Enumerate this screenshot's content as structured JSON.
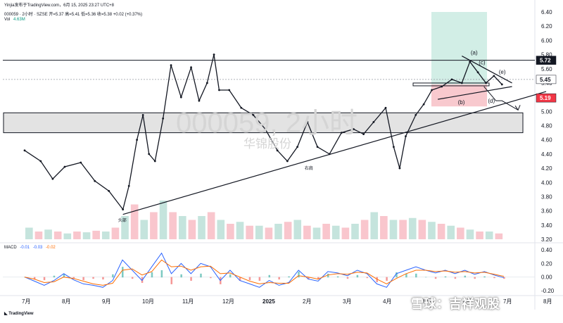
{
  "header": {
    "attribution": "Yinjia发布于TradingView.com，6月 15, 2025 23:27 UTC+8",
    "quote": "000059 · 2小时 · SZSE  开=5.37  高=5.41  低=5.36  收=5.38  +0.02 (+0.37%)",
    "volume_label": "Vol",
    "volume_value": "4.63M"
  },
  "watermark": {
    "symbol": "000059, 2小时",
    "name": "华锦股份"
  },
  "annotations": {
    "a": "(a)",
    "b": "(b)",
    "c": "(c)",
    "d": "(d)",
    "e": "(e)",
    "head": "头部",
    "right_shoulder": "右肩"
  },
  "price_tags": {
    "resistance": "5.72",
    "last": "5.45",
    "stop": "5.19"
  },
  "macd": {
    "label": "MACD",
    "v1": "-0.01",
    "v2": "-0.03",
    "v3": "-0.02"
  },
  "footer": {
    "brand": "TradingView",
    "credit": "雪球：吉祥观股"
  },
  "colors": {
    "up": "#131722",
    "down": "#131722",
    "target_zone": "#d2eee6",
    "stop_zone": "#f8c9ce",
    "support_band": "#e3e3e3",
    "macd_line": "#2962ff",
    "signal_line": "#ff6d00",
    "tag_dark": "#131722",
    "tag_red": "#f23645"
  },
  "chart_data": {
    "type": "line",
    "title": "000059 · 2小时 · SZSE",
    "ylim": [
      3.2,
      6.4
    ],
    "y_ticks": [
      "6.40",
      "6.20",
      "6.00",
      "5.80",
      "5.60",
      "5.40",
      "5.20",
      "5.00",
      "4.80",
      "4.60",
      "4.40",
      "4.20",
      "4.00",
      "3.80",
      "3.60",
      "3.40",
      "3.20"
    ],
    "x_ticks": [
      "7月",
      "8月",
      "9月",
      "10月",
      "11月",
      "12月",
      "2025",
      "2月",
      "3月",
      "4月",
      "5月",
      "6月",
      "7月",
      "8月"
    ],
    "x_tick_months": [
      0,
      1,
      2,
      3,
      4,
      5,
      6,
      7,
      8,
      9,
      10,
      11,
      12,
      13
    ],
    "price_path": [
      {
        "m": 0.0,
        "p": 4.45
      },
      {
        "m": 0.4,
        "p": 4.3
      },
      {
        "m": 0.7,
        "p": 4.05
      },
      {
        "m": 1.0,
        "p": 4.22
      },
      {
        "m": 1.4,
        "p": 4.28
      },
      {
        "m": 1.75,
        "p": 4.02
      },
      {
        "m": 2.1,
        "p": 3.88
      },
      {
        "m": 2.45,
        "p": 3.62
      },
      {
        "m": 2.6,
        "p": 3.95
      },
      {
        "m": 2.8,
        "p": 4.6
      },
      {
        "m": 2.95,
        "p": 4.95
      },
      {
        "m": 3.1,
        "p": 4.4
      },
      {
        "m": 3.25,
        "p": 4.3
      },
      {
        "m": 3.45,
        "p": 4.9
      },
      {
        "m": 3.65,
        "p": 5.65
      },
      {
        "m": 3.9,
        "p": 5.2
      },
      {
        "m": 4.15,
        "p": 5.62
      },
      {
        "m": 4.35,
        "p": 5.15
      },
      {
        "m": 4.55,
        "p": 5.4
      },
      {
        "m": 4.72,
        "p": 5.8
      },
      {
        "m": 4.85,
        "p": 5.3
      },
      {
        "m": 5.1,
        "p": 5.3
      },
      {
        "m": 5.4,
        "p": 5.05
      },
      {
        "m": 5.7,
        "p": 4.95
      },
      {
        "m": 6.0,
        "p": 4.75
      },
      {
        "m": 6.3,
        "p": 4.45
      },
      {
        "m": 6.55,
        "p": 4.3
      },
      {
        "m": 6.8,
        "p": 4.5
      },
      {
        "m": 7.05,
        "p": 4.85
      },
      {
        "m": 7.3,
        "p": 4.5
      },
      {
        "m": 7.6,
        "p": 4.4
      },
      {
        "m": 7.9,
        "p": 4.7
      },
      {
        "m": 8.2,
        "p": 4.75
      },
      {
        "m": 8.45,
        "p": 4.68
      },
      {
        "m": 8.7,
        "p": 4.85
      },
      {
        "m": 9.0,
        "p": 5.05
      },
      {
        "m": 9.2,
        "p": 4.5
      },
      {
        "m": 9.35,
        "p": 4.2
      },
      {
        "m": 9.5,
        "p": 4.65
      },
      {
        "m": 9.75,
        "p": 4.95
      },
      {
        "m": 9.95,
        "p": 5.1
      },
      {
        "m": 10.15,
        "p": 5.3
      },
      {
        "m": 10.4,
        "p": 5.35
      },
      {
        "m": 10.65,
        "p": 5.45
      },
      {
        "m": 10.9,
        "p": 5.4
      },
      {
        "m": 11.1,
        "p": 5.7
      },
      {
        "m": 11.3,
        "p": 5.55
      },
      {
        "m": 11.5,
        "p": 5.4
      },
      {
        "m": 11.7,
        "p": 5.5
      },
      {
        "m": 11.9,
        "p": 5.38
      }
    ],
    "levels": {
      "resistance": 5.72,
      "last": 5.45,
      "stop": 5.19,
      "target_top": 6.4,
      "support_band": [
        4.7,
        4.98
      ],
      "entry": 5.38
    },
    "trendlines": [
      {
        "from": {
          "m": 2.45,
          "p": 3.55
        },
        "to": {
          "m": 13.0,
          "p": 5.28
        }
      },
      {
        "from": {
          "m": 10.9,
          "p": 5.78
        },
        "to": {
          "m": 12.15,
          "p": 5.4
        }
      },
      {
        "from": {
          "m": 10.3,
          "p": 5.17
        },
        "to": {
          "m": 12.15,
          "p": 5.35
        }
      }
    ],
    "projection": [
      {
        "m": 11.45,
        "p": 5.35
      },
      {
        "m": 11.75,
        "p": 5.15
      },
      {
        "m": 11.9,
        "p": 5.15
      },
      {
        "m": 12.3,
        "p": 5.02
      }
    ],
    "macd_series": [
      {
        "name": "MACD",
        "values": [
          0.0,
          -0.06,
          -0.12,
          -0.05,
          0.05,
          -0.04,
          -0.1,
          -0.12,
          -0.15,
          -0.05,
          0.25,
          0.1,
          -0.05,
          0.15,
          0.35,
          0.05,
          0.2,
          0.05,
          0.2,
          0.15,
          -0.05,
          0.1,
          -0.05,
          -0.1,
          -0.15,
          -0.05,
          -0.12,
          -0.08,
          0.1,
          -0.03,
          -0.06,
          0.08,
          0.06,
          0.02,
          0.1,
          0.05,
          -0.1,
          -0.15,
          0.05,
          0.1,
          0.15,
          0.1,
          0.06,
          0.1,
          0.05,
          0.1,
          0.04,
          0.08,
          0.03,
          -0.01
        ]
      },
      {
        "name": "Signal",
        "values": [
          0.0,
          -0.03,
          -0.08,
          -0.07,
          0.0,
          -0.02,
          -0.06,
          -0.1,
          -0.12,
          -0.09,
          0.1,
          0.12,
          0.03,
          0.08,
          0.25,
          0.15,
          0.16,
          0.1,
          0.15,
          0.16,
          0.05,
          0.06,
          0.0,
          -0.06,
          -0.1,
          -0.08,
          -0.09,
          -0.09,
          0.02,
          0.0,
          -0.03,
          0.03,
          0.05,
          0.04,
          0.07,
          0.06,
          -0.03,
          -0.1,
          -0.02,
          0.05,
          0.1,
          0.1,
          0.08,
          0.09,
          0.07,
          0.08,
          0.06,
          0.07,
          0.04,
          0.01
        ]
      }
    ],
    "macd_ylim": [
      -0.25,
      0.45
    ],
    "macd_ticks": [
      "0.40",
      "0.20",
      "0.00",
      "-0.20"
    ],
    "volume_heights": [
      0.3,
      0.2,
      0.25,
      0.2,
      0.15,
      0.2,
      0.18,
      0.22,
      0.2,
      0.3,
      0.6,
      0.9,
      0.5,
      0.7,
      1.0,
      0.7,
      0.6,
      0.5,
      0.6,
      0.7,
      0.5,
      0.4,
      0.45,
      0.35,
      0.35,
      0.3,
      0.4,
      0.45,
      0.5,
      0.35,
      0.3,
      0.4,
      0.35,
      0.3,
      0.4,
      0.5,
      0.7,
      0.6,
      0.5,
      0.5,
      0.55,
      0.5,
      0.45,
      0.4,
      0.35,
      0.3,
      0.25,
      0.2,
      0.2,
      0.15
    ]
  }
}
